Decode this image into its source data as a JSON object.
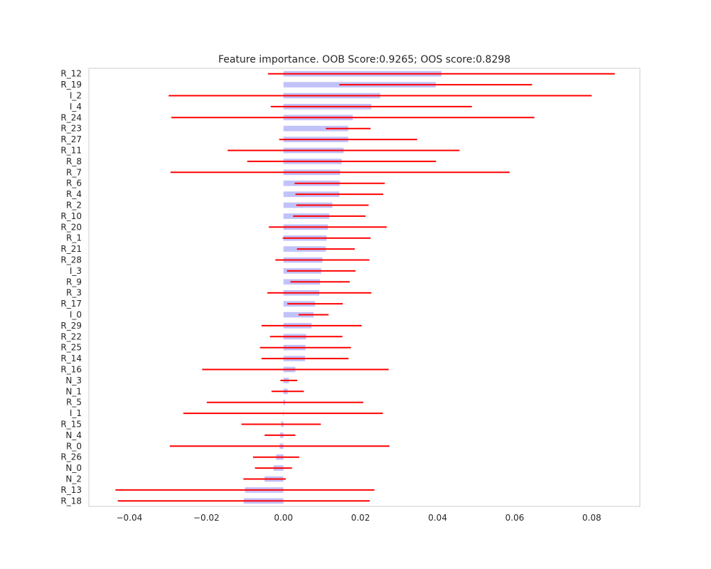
{
  "chart_data": {
    "type": "bar",
    "orientation": "horizontal",
    "title": "Feature importance. OOB Score:0.9265; OOS score:0.8298",
    "xlabel": "",
    "ylabel": "",
    "xlim": [
      -0.0505,
      0.0925
    ],
    "xticks": [
      -0.04,
      -0.02,
      0.0,
      0.02,
      0.04,
      0.06,
      0.08
    ],
    "xtick_labels": [
      "−0.04",
      "−0.02",
      "0.00",
      "0.02",
      "0.04",
      "0.06",
      "0.08"
    ],
    "grid": false,
    "bar_color": "#c2c2fa",
    "error_color": "#ff0000",
    "categories": [
      "R_12",
      "R_19",
      "I_2",
      "I_4",
      "R_24",
      "R_23",
      "R_27",
      "R_11",
      "R_8",
      "R_7",
      "R_6",
      "R_4",
      "R_2",
      "R_10",
      "R_20",
      "R_1",
      "R_21",
      "R_28",
      "I_3",
      "R_9",
      "R_3",
      "R_17",
      "I_0",
      "R_29",
      "R_22",
      "R_25",
      "R_14",
      "R_16",
      "N_3",
      "N_1",
      "R_5",
      "I_1",
      "R_15",
      "N_4",
      "R_0",
      "R_26",
      "N_0",
      "N_2",
      "R_13",
      "R_18"
    ],
    "values": [
      0.041,
      0.0395,
      0.0251,
      0.0228,
      0.018,
      0.0168,
      0.0168,
      0.0156,
      0.0151,
      0.0147,
      0.0146,
      0.0145,
      0.0127,
      0.0119,
      0.0115,
      0.0112,
      0.011,
      0.0101,
      0.0098,
      0.0095,
      0.0093,
      0.0082,
      0.0078,
      0.0073,
      0.0059,
      0.0057,
      0.0056,
      0.0031,
      0.0014,
      0.0011,
      0.0004,
      -0.0001,
      -0.0006,
      -0.0009,
      -0.001,
      -0.0019,
      -0.0026,
      -0.0049,
      -0.01,
      -0.0103
    ],
    "errors": [
      0.045,
      0.025,
      0.0549,
      0.0261,
      0.0471,
      0.0058,
      0.0179,
      0.0301,
      0.0245,
      0.044,
      0.0117,
      0.0114,
      0.0094,
      0.0094,
      0.0153,
      0.0114,
      0.0075,
      0.0122,
      0.0089,
      0.0077,
      0.0135,
      0.0072,
      0.0039,
      0.013,
      0.0094,
      0.0118,
      0.0113,
      0.0242,
      0.0022,
      0.0042,
      0.0203,
      0.0259,
      0.0103,
      0.004,
      0.0285,
      0.006,
      0.0048,
      0.0055,
      0.0336,
      0.0327
    ]
  }
}
